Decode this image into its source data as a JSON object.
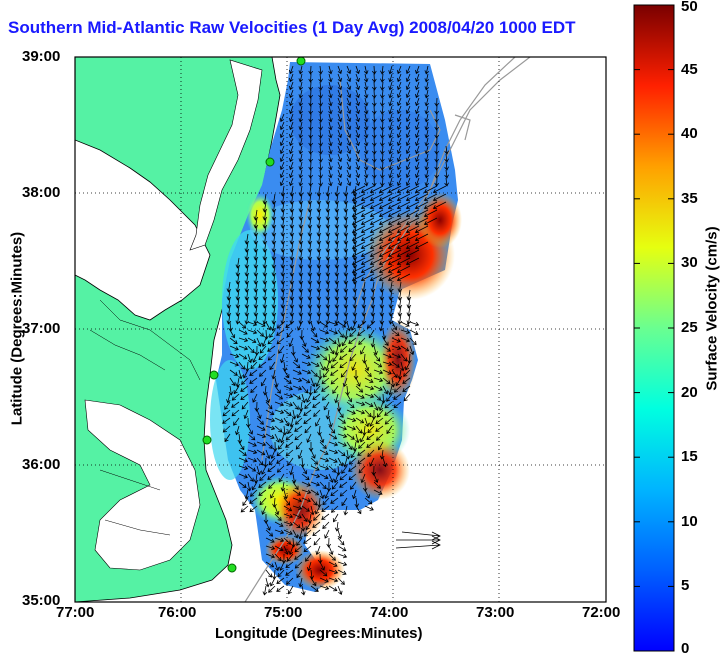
{
  "title": "Southern Mid-Atlantic Raw Velocities (1 Day Avg) 2008/04/20 1000 EDT",
  "xlabel": "Longitude (Degrees:Minutes)",
  "ylabel": "Latitude (Degrees:Minutes)",
  "colorbar": {
    "label": "Surface Velocity (cm/s)",
    "min": 0,
    "max": 50,
    "ticks": [
      "0",
      "5",
      "10",
      "15",
      "20",
      "25",
      "30",
      "35",
      "40",
      "45",
      "50"
    ],
    "colormap": "jet"
  },
  "axes": {
    "x_ticks": [
      "77:00",
      "76:00",
      "75:00",
      "74:00",
      "73:00",
      "72:00"
    ],
    "y_ticks": [
      "39:00",
      "38:00",
      "37:00",
      "36:00",
      "35:00"
    ],
    "xlim": [
      -77,
      -72
    ],
    "ylim": [
      35,
      39
    ],
    "grid": "dotted"
  },
  "colors": {
    "land": "#55f2a4",
    "title": "#1a1aff",
    "stations": "#22dd22"
  }
}
